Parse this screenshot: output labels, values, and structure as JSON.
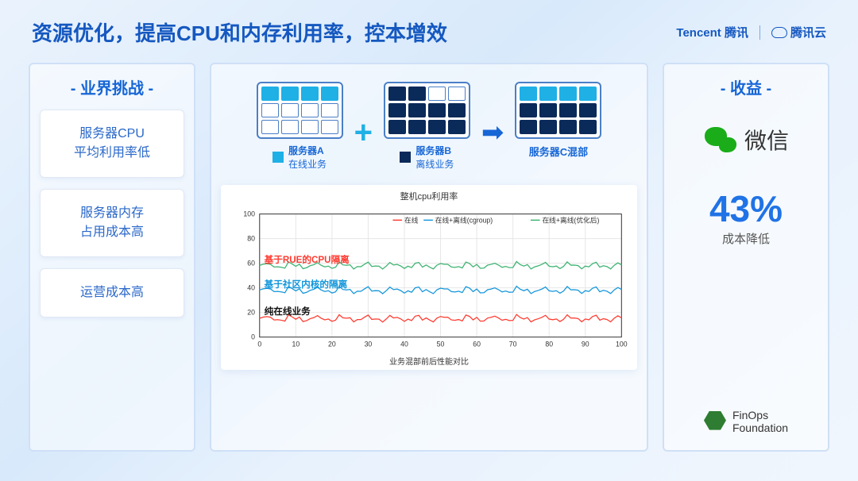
{
  "header": {
    "title": "资源优化，提高CPU和内存利用率，控本增效",
    "brand1": "Tencent 腾讯",
    "brand2": "腾讯云"
  },
  "left": {
    "title": "- 业界挑战 -",
    "items": [
      "服务器CPU\n平均利用率低",
      "服务器内存\n占用成本高",
      "运营成本高"
    ]
  },
  "servers": {
    "a": {
      "name": "服务器A",
      "sub": "在线业务",
      "pattern": [
        [
          1,
          1,
          1,
          1
        ],
        [
          0,
          0,
          0,
          0
        ],
        [
          0,
          0,
          0,
          0
        ]
      ],
      "color": "on"
    },
    "b": {
      "name": "服务器B",
      "sub": "离线业务",
      "pattern": [
        [
          1,
          1,
          0,
          0
        ],
        [
          1,
          1,
          1,
          1
        ],
        [
          1,
          1,
          1,
          1
        ]
      ],
      "color": "off"
    },
    "c": {
      "name": "服务器C混部",
      "pattern_a": [
        [
          1,
          1,
          1,
          1
        ]
      ],
      "pattern_b": [
        [
          1,
          1,
          1,
          1
        ],
        [
          1,
          1,
          1,
          1
        ]
      ]
    }
  },
  "chart": {
    "title": "整机cpu利用率",
    "xlabel": "业务混部前后性能对比",
    "legend": [
      "在线",
      "在线+离线(cgroup)",
      "在线+离线(优化后)"
    ],
    "colors": {
      "online": "#ff3b30",
      "cgroup": "#1296db",
      "optimized": "#3cb371",
      "grid": "#e6e6e6",
      "axis": "#333"
    },
    "ylim": [
      0,
      100
    ],
    "ytick": 20,
    "xlim": [
      0,
      100
    ],
    "xtick": 10,
    "series": {
      "online": 15,
      "cgroup": 38,
      "optimized": 58
    },
    "noise": 3,
    "annotations": [
      {
        "text": "基于RUE的CPU隔离",
        "y": 58,
        "color": "#ff3b30"
      },
      {
        "text": "基于社区内核的隔离",
        "y": 38,
        "color": "#1296db"
      },
      {
        "text": "纯在线业务",
        "y": 16,
        "color": "#111"
      }
    ]
  },
  "right": {
    "title": "- 收益 -",
    "wechat": "微信",
    "stat_value": "43%",
    "stat_label": "成本降低",
    "finops1": "FinOps",
    "finops2": "Foundation"
  }
}
